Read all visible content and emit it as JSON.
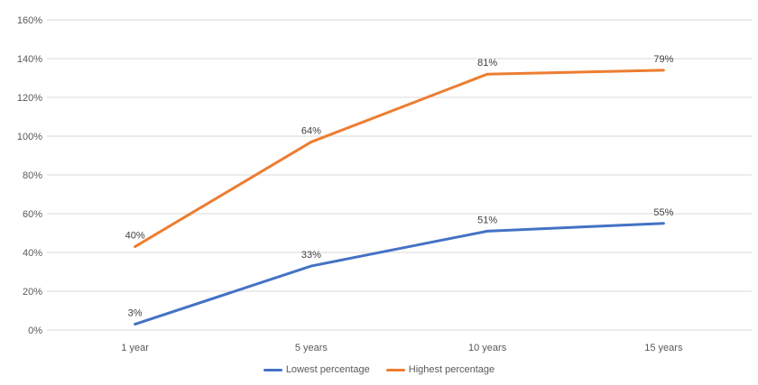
{
  "chart_data": {
    "type": "line",
    "stacked": true,
    "title": "",
    "categories": [
      "1 year",
      "5 years",
      "10 years",
      "15 years"
    ],
    "series": [
      {
        "name": "Lowest percentage",
        "color": "#4472C4",
        "values": [
          3,
          33,
          51,
          55
        ],
        "data_labels": [
          "3%",
          "33%",
          "51%",
          "55%"
        ]
      },
      {
        "name": "Highest percentage",
        "color": "#ED7D31",
        "values": [
          40,
          64,
          81,
          79
        ],
        "data_labels": [
          "40%",
          "64%",
          "81%",
          "79%"
        ]
      }
    ],
    "y_axis": {
      "min": 0,
      "max": 160,
      "step": 20,
      "tick_labels": [
        "0%",
        "20%",
        "40%",
        "60%",
        "80%",
        "100%",
        "120%",
        "140%",
        "160%"
      ]
    },
    "x_axis": {
      "tick_labels": [
        "1 year",
        "5 years",
        "10 years",
        "15 years"
      ]
    },
    "legend": {
      "position": "bottom",
      "entries": [
        "Lowest percentage",
        "Highest percentage"
      ]
    },
    "grid": true,
    "colors": {
      "gridline": "#D9D9D9",
      "axis_text": "#595959",
      "data_label_text": "#404040",
      "background": "#FFFFFF"
    }
  }
}
